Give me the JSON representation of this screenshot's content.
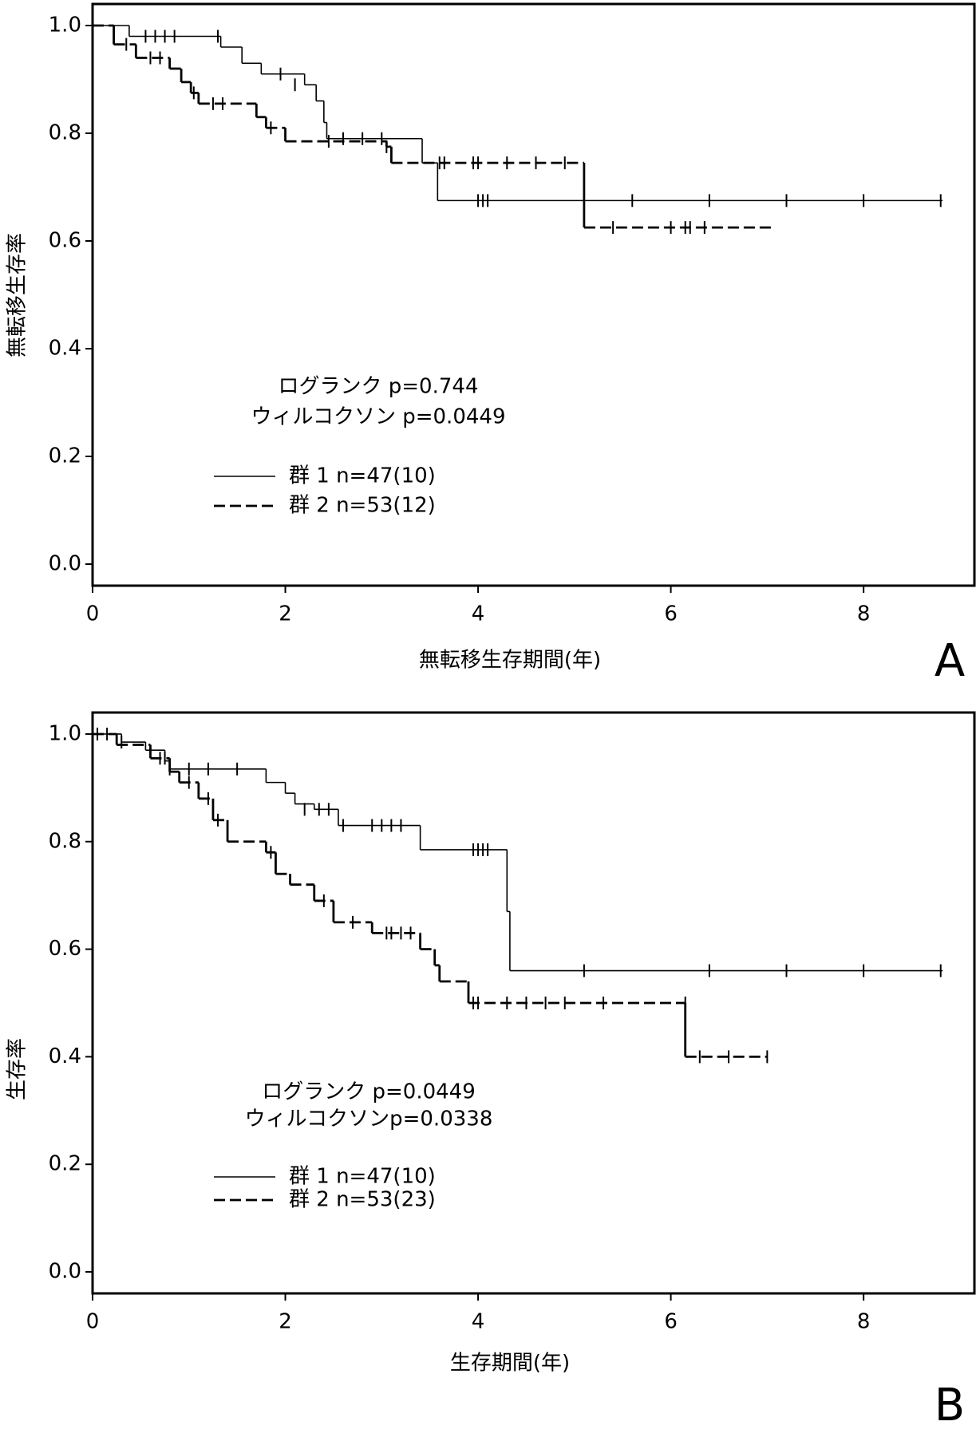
{
  "chart_data": [
    {
      "type": "step",
      "panel_label": "A",
      "xlabel": "無転移生存期間(年)",
      "ylabel": "無転移生存率",
      "annotations": [
        "ログランク p=0.744",
        "ウィルコクソン p=0.0449"
      ],
      "xlim": [
        0,
        9.15
      ],
      "ylim": [
        -0.04,
        1.04
      ],
      "xticks": [
        0,
        2,
        4,
        6,
        8
      ],
      "yticks": [
        {
          "value": 0,
          "label": "0.0"
        },
        0.2,
        0.4,
        0.6,
        0.8,
        {
          "value": 1,
          "label": "1.0"
        }
      ],
      "series": [
        {
          "name": "群 1 n=47(10)",
          "color": "#000000",
          "line_style": "solid",
          "x": [
            0,
            0.38,
            1.33,
            1.55,
            1.75,
            2.2,
            2.32,
            2.4,
            2.43,
            3.42,
            3.58,
            8.82
          ],
          "values": [
            1,
            0.98,
            0.96,
            0.93,
            0.91,
            0.89,
            0.86,
            0.82,
            0.79,
            0.745,
            0.675,
            0.675
          ],
          "censor_x": [
            0.55,
            0.65,
            0.75,
            0.85,
            1.3,
            1.95,
            2.1,
            2.6,
            2.8,
            3.0,
            4.0,
            4.05,
            4.1,
            5.6,
            6.4,
            7.2,
            8.0,
            8.8
          ],
          "censor_y": [
            0.98,
            0.98,
            0.98,
            0.98,
            0.98,
            0.91,
            0.89,
            0.79,
            0.79,
            0.79,
            0.675,
            0.675,
            0.675,
            0.675,
            0.675,
            0.675,
            0.675,
            0.675
          ]
        },
        {
          "name": "群 2 n=53(12)",
          "color": "#000000",
          "line_style": "dashed",
          "x": [
            0,
            0.22,
            0.45,
            0.8,
            0.92,
            1.02,
            1.1,
            1.7,
            1.8,
            2.0,
            3.05,
            3.1,
            5.1,
            7.05
          ],
          "values": [
            1,
            0.965,
            0.94,
            0.92,
            0.895,
            0.875,
            0.855,
            0.83,
            0.81,
            0.785,
            0.775,
            0.745,
            0.625,
            0.625
          ],
          "censor_x": [
            0.35,
            0.6,
            0.7,
            1.05,
            1.25,
            1.35,
            1.85,
            2.45,
            3.05,
            3.6,
            3.65,
            3.95,
            4.0,
            4.3,
            4.6,
            4.9,
            5.4,
            6.0,
            6.15,
            6.2,
            6.35
          ],
          "censor_y": [
            0.965,
            0.94,
            0.94,
            0.875,
            0.855,
            0.855,
            0.81,
            0.785,
            0.775,
            0.745,
            0.745,
            0.745,
            0.745,
            0.745,
            0.745,
            0.745,
            0.625,
            0.625,
            0.625,
            0.625,
            0.625
          ]
        }
      ]
    },
    {
      "type": "step",
      "panel_label": "B",
      "xlabel": "生存期間(年)",
      "ylabel": "生存率",
      "annotations": [
        "ログランク p=0.0449",
        "ウィルコクソンp=0.0338"
      ],
      "xlim": [
        0,
        9.15
      ],
      "ylim": [
        -0.04,
        1.04
      ],
      "xticks": [
        0,
        2,
        4,
        6,
        8
      ],
      "yticks": [
        {
          "value": 0,
          "label": "0.0"
        },
        0.2,
        0.4,
        0.6,
        0.8,
        {
          "value": 1,
          "label": "1.0"
        }
      ],
      "series": [
        {
          "name": "群 1 n=47(10)",
          "color": "#000000",
          "line_style": "solid",
          "x": [
            0,
            0.3,
            0.55,
            0.75,
            0.8,
            1.8,
            2.0,
            2.1,
            2.3,
            2.55,
            3.4,
            4.3,
            4.33,
            8.82
          ],
          "values": [
            1,
            0.985,
            0.97,
            0.95,
            0.935,
            0.91,
            0.89,
            0.87,
            0.86,
            0.83,
            0.785,
            0.67,
            0.56,
            0.56
          ],
          "censor_x": [
            0.05,
            0.3,
            0.8,
            1.0,
            1.2,
            1.5,
            2.2,
            2.35,
            2.45,
            2.6,
            2.9,
            3.0,
            3.1,
            3.2,
            3.95,
            4.0,
            4.05,
            4.1,
            5.1,
            6.4,
            7.2,
            8.0,
            8.8
          ],
          "censor_y": [
            1,
            0.985,
            0.935,
            0.935,
            0.935,
            0.935,
            0.86,
            0.86,
            0.86,
            0.83,
            0.83,
            0.83,
            0.83,
            0.83,
            0.785,
            0.785,
            0.785,
            0.785,
            0.56,
            0.56,
            0.56,
            0.56,
            0.56
          ]
        },
        {
          "name": "群 2 n=53(23)",
          "color": "#000000",
          "line_style": "dashed",
          "x": [
            0,
            0.25,
            0.6,
            0.8,
            0.9,
            1.1,
            1.25,
            1.4,
            1.8,
            1.9,
            2.05,
            2.3,
            2.5,
            2.9,
            3.4,
            3.55,
            3.6,
            3.9,
            6.15,
            7.0
          ],
          "values": [
            1,
            0.98,
            0.955,
            0.93,
            0.91,
            0.88,
            0.84,
            0.8,
            0.78,
            0.74,
            0.72,
            0.69,
            0.65,
            0.63,
            0.6,
            0.57,
            0.54,
            0.5,
            0.4,
            0.4
          ],
          "censor_x": [
            0.15,
            0.7,
            0.75,
            1.0,
            1.2,
            1.3,
            1.85,
            2.4,
            2.7,
            3.05,
            3.1,
            3.2,
            3.3,
            3.95,
            4.0,
            4.3,
            4.5,
            4.7,
            4.9,
            5.3,
            6.15,
            6.3,
            6.6,
            7.0
          ],
          "censor_y": [
            1,
            0.955,
            0.955,
            0.91,
            0.88,
            0.84,
            0.78,
            0.69,
            0.65,
            0.63,
            0.63,
            0.63,
            0.63,
            0.5,
            0.5,
            0.5,
            0.5,
            0.5,
            0.5,
            0.5,
            0.5,
            0.4,
            0.4,
            0.4
          ]
        }
      ]
    }
  ]
}
